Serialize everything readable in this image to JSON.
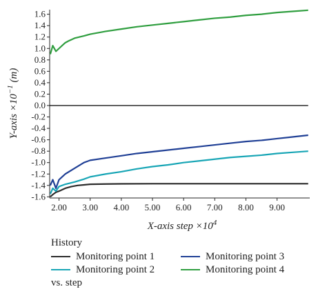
{
  "chart_data": {
    "type": "line",
    "xlabel": "X-axis step ×10",
    "xlabel_exp": "4",
    "ylabel": "Y-axis ×10",
    "ylabel_exp": "−1",
    "ylabel_unit": " (m)",
    "xlim": [
      1.7,
      10.05
    ],
    "ylim": [
      -1.62,
      1.68
    ],
    "x_ticks": [
      2,
      3,
      4,
      5,
      6,
      7,
      8,
      9
    ],
    "x_tick_labels": [
      "2.00",
      "3.00",
      "4.00",
      "5.00",
      "6.00",
      "7.00",
      "8.00",
      "9.00"
    ],
    "y_ticks": [
      -1.6,
      -1.4,
      -1.2,
      -1.0,
      -0.8,
      -0.6,
      -0.4,
      -0.2,
      0.0,
      0.2,
      0.4,
      0.6,
      0.8,
      1.0,
      1.2,
      1.4,
      1.6
    ],
    "y_tick_labels": [
      "-1.6",
      "-1.4",
      "-1.2",
      "-1.0",
      "-0.8",
      "-0.6",
      "-0.4",
      "-0.2",
      "0.0",
      "0.2",
      "0.4",
      "0.6",
      "0.8",
      "1.0",
      "1.2",
      "1.4",
      "1.6"
    ],
    "grid": false,
    "legend_position": "bottom",
    "series": [
      {
        "name": "Monitoring point 1",
        "color": "#2b2b2b",
        "x": [
          1.72,
          1.8,
          1.9,
          2.0,
          2.2,
          2.4,
          2.6,
          2.8,
          3.0,
          3.5,
          4.0,
          5.0,
          6.0,
          7.0,
          8.0,
          9.0,
          10.0
        ],
        "y": [
          -1.6,
          -1.56,
          -1.52,
          -1.5,
          -1.45,
          -1.42,
          -1.4,
          -1.39,
          -1.38,
          -1.375,
          -1.372,
          -1.37,
          -1.37,
          -1.37,
          -1.37,
          -1.37,
          -1.37
        ]
      },
      {
        "name": "Monitoring point 2",
        "color": "#17a5b5",
        "x": [
          1.72,
          1.8,
          1.9,
          2.0,
          2.2,
          2.5,
          2.8,
          3.0,
          3.5,
          4.0,
          4.5,
          5.0,
          5.5,
          6.0,
          6.5,
          7.0,
          7.5,
          8.0,
          8.5,
          9.0,
          9.5,
          10.0
        ],
        "y": [
          -1.55,
          -1.45,
          -1.5,
          -1.42,
          -1.38,
          -1.34,
          -1.29,
          -1.25,
          -1.2,
          -1.16,
          -1.11,
          -1.07,
          -1.04,
          -1.0,
          -0.97,
          -0.94,
          -0.91,
          -0.89,
          -0.87,
          -0.84,
          -0.82,
          -0.8
        ]
      },
      {
        "name": "Monitoring point 3",
        "color": "#1f3f95",
        "x": [
          1.72,
          1.8,
          1.9,
          2.0,
          2.2,
          2.5,
          2.8,
          3.0,
          3.5,
          4.0,
          4.5,
          5.0,
          5.5,
          6.0,
          6.5,
          7.0,
          7.5,
          8.0,
          8.5,
          9.0,
          9.5,
          10.0
        ],
        "y": [
          -1.4,
          -1.3,
          -1.45,
          -1.3,
          -1.2,
          -1.1,
          -1.0,
          -0.96,
          -0.92,
          -0.88,
          -0.84,
          -0.81,
          -0.78,
          -0.75,
          -0.72,
          -0.69,
          -0.66,
          -0.63,
          -0.61,
          -0.58,
          -0.55,
          -0.52
        ]
      },
      {
        "name": "Monitoring point 4",
        "color": "#2f9e3f",
        "x": [
          1.72,
          1.8,
          1.9,
          2.0,
          2.1,
          2.2,
          2.3,
          2.5,
          2.8,
          3.0,
          3.5,
          4.0,
          4.5,
          5.0,
          5.5,
          6.0,
          6.5,
          7.0,
          7.5,
          8.0,
          8.5,
          9.0,
          9.5,
          10.0
        ],
        "y": [
          0.9,
          1.05,
          0.95,
          1.0,
          1.05,
          1.1,
          1.13,
          1.18,
          1.22,
          1.25,
          1.3,
          1.34,
          1.38,
          1.41,
          1.44,
          1.47,
          1.5,
          1.53,
          1.55,
          1.58,
          1.6,
          1.63,
          1.65,
          1.67
        ]
      },
      {
        "name": "",
        "color": "#000000",
        "x": [
          1.7,
          10.0
        ],
        "y": [
          0.0,
          0.0
        ]
      }
    ]
  },
  "legend": {
    "title": "History",
    "footer": "vs. step",
    "items": [
      {
        "label": "Monitoring point 1",
        "color": "#2b2b2b"
      },
      {
        "label": "Monitoring point 2",
        "color": "#17a5b5"
      },
      {
        "label": "Monitoring point 3",
        "color": "#1f3f95"
      },
      {
        "label": "Monitoring point 4",
        "color": "#2f9e3f"
      }
    ]
  }
}
